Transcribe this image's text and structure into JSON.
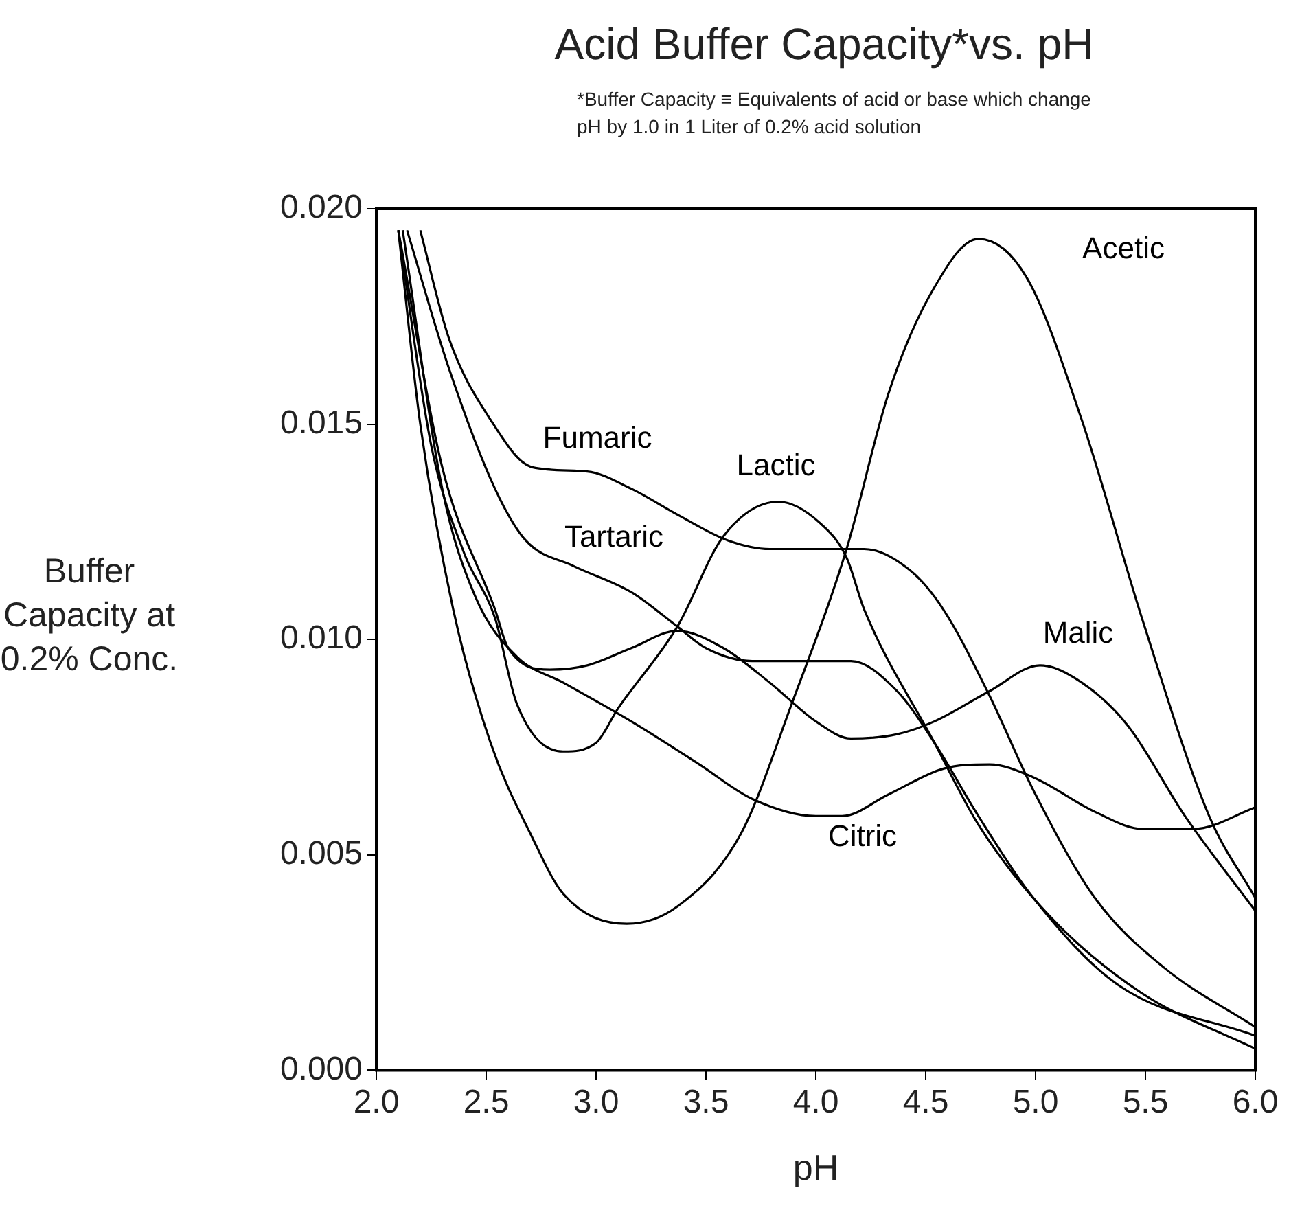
{
  "chart_data": {
    "type": "line",
    "title": "Acid Buffer Capacity*vs. pH",
    "subtitle": "*Buffer Capacity ≡ Equivalents of acid or base which change pH by 1.0 in 1 Liter of 0.2% acid solution",
    "xlabel": "pH",
    "ylabel": "Buffer Capacity at 0.2% Conc.",
    "xlim": [
      2,
      6
    ],
    "ylim": [
      0,
      0.02
    ],
    "xticks": [
      {
        "value": 2,
        "label": "2.0"
      },
      {
        "value": 2.5,
        "label": "2.5"
      },
      {
        "value": 3,
        "label": "3.0"
      },
      {
        "value": 3.5,
        "label": "3.5"
      },
      {
        "value": 4,
        "label": "4.0"
      },
      {
        "value": 4.5,
        "label": "4.5"
      },
      {
        "value": 5,
        "label": "5.0"
      },
      {
        "value": 5.5,
        "label": "5.5"
      },
      {
        "value": 6,
        "label": "6.0"
      }
    ],
    "yticks": [
      {
        "value": 0,
        "label": "0.000"
      },
      {
        "value": 0.005,
        "label": "0.005"
      },
      {
        "value": 0.01,
        "label": "0.010"
      },
      {
        "value": 0.015,
        "label": "0.015"
      },
      {
        "value": 0.02,
        "label": "0.020"
      }
    ],
    "grid": false,
    "legend": false,
    "marker": "none",
    "line_style": "solid",
    "series": [
      {
        "name": "Acetic",
        "color": "#000000",
        "x": [
          2.1,
          2.2,
          2.35,
          2.52,
          2.71,
          2.85,
          3.14,
          3.37,
          3.66,
          3.89,
          4.14,
          4.33,
          4.52,
          4.74,
          4.96,
          5.21,
          5.49,
          5.79,
          6.0
        ],
        "values": [
          0.0195,
          0.015,
          0.0107,
          0.0076,
          0.0054,
          0.0041,
          0.0034,
          0.0038,
          0.0055,
          0.0085,
          0.0121,
          0.0157,
          0.018,
          0.0193,
          0.0184,
          0.0151,
          0.0104,
          0.0059,
          0.004
        ]
      },
      {
        "name": "Lactic",
        "color": "#000000",
        "x": [
          2.1,
          2.25,
          2.4,
          2.54,
          2.64,
          2.85,
          3.0,
          3.1,
          3.37,
          3.58,
          3.83,
          4.02,
          4.14,
          4.22,
          4.54,
          4.74,
          5.06,
          5.48,
          6.0
        ],
        "values": [
          0.0195,
          0.0145,
          0.012,
          0.0105,
          0.0085,
          0.0074,
          0.0076,
          0.0084,
          0.0103,
          0.0124,
          0.0132,
          0.0127,
          0.0119,
          0.0107,
          0.0076,
          0.0057,
          0.0036,
          0.0018,
          0.0005
        ]
      },
      {
        "name": "Fumaric",
        "color": "#000000",
        "x": [
          2.2,
          2.33,
          2.52,
          2.71,
          2.96,
          3.16,
          3.37,
          3.6,
          3.79,
          4.04,
          4.22,
          4.43,
          4.58,
          4.79,
          4.99,
          5.27,
          5.58,
          6.0
        ],
        "values": [
          0.0195,
          0.017,
          0.0151,
          0.014,
          0.0139,
          0.0135,
          0.0129,
          0.0123,
          0.0121,
          0.0121,
          0.0121,
          0.0116,
          0.0107,
          0.0087,
          0.0065,
          0.004,
          0.0024,
          0.001
        ]
      },
      {
        "name": "Tartaric",
        "color": "#000000",
        "x": [
          2.14,
          2.33,
          2.54,
          2.68,
          2.9,
          3.16,
          3.37,
          3.5,
          3.71,
          4.0,
          4.16,
          4.37,
          4.54,
          4.74,
          4.99,
          5.37,
          6.0
        ],
        "values": [
          0.0195,
          0.0163,
          0.0135,
          0.0123,
          0.0117,
          0.0111,
          0.0103,
          0.0098,
          0.0095,
          0.0095,
          0.0095,
          0.0088,
          0.0076,
          0.0059,
          0.004,
          0.002,
          0.0008
        ]
      },
      {
        "name": "Malic",
        "color": "#000000",
        "x": [
          2.1,
          2.3,
          2.54,
          2.6,
          2.79,
          2.96,
          3.16,
          3.37,
          3.58,
          3.79,
          4.0,
          4.16,
          4.37,
          4.54,
          4.79,
          5.02,
          5.21,
          5.42,
          5.68,
          6.0
        ],
        "values": [
          0.0195,
          0.014,
          0.0107,
          0.0098,
          0.0093,
          0.0094,
          0.0098,
          0.0102,
          0.0098,
          0.009,
          0.0081,
          0.0077,
          0.0078,
          0.0081,
          0.0088,
          0.0094,
          0.009,
          0.008,
          0.0059,
          0.0037
        ]
      },
      {
        "name": "Citric",
        "color": "#000000",
        "x": [
          2.12,
          2.3,
          2.45,
          2.64,
          2.85,
          3.16,
          3.47,
          3.71,
          4.0,
          4.12,
          4.33,
          4.58,
          4.79,
          4.99,
          5.27,
          5.49,
          5.72,
          6.0
        ],
        "values": [
          0.0195,
          0.0135,
          0.011,
          0.0096,
          0.009,
          0.0081,
          0.0071,
          0.0063,
          0.0059,
          0.0059,
          0.0064,
          0.007,
          0.0071,
          0.0068,
          0.006,
          0.0056,
          0.0056,
          0.0061
        ]
      }
    ]
  }
}
